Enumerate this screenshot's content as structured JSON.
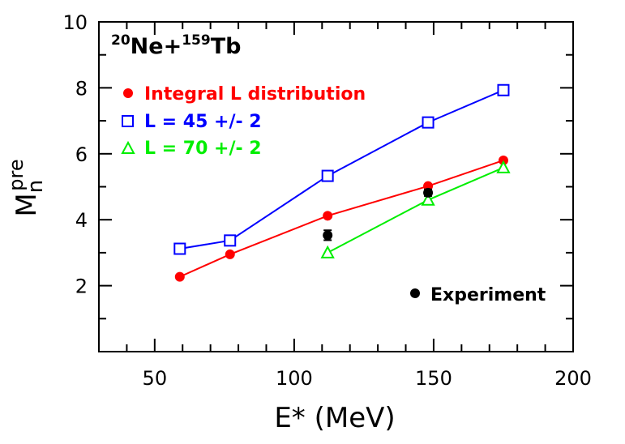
{
  "chart_data": {
    "type": "line",
    "system_label": {
      "z1": "20",
      "p1": "Ne+",
      "z2": "159",
      "p2": "Tb"
    },
    "xlabel": "E* (MeV)",
    "ylabel": {
      "main": "M",
      "sub": "n",
      "sup": "pre"
    },
    "xlim": [
      30,
      200
    ],
    "ylim": [
      0,
      10
    ],
    "x_ticks": [
      50,
      100,
      150,
      200
    ],
    "y_ticks": [
      2,
      4,
      6,
      8,
      10
    ],
    "grid": false,
    "legend_position": "top-left",
    "series": [
      {
        "name": "Integral L distribution",
        "color": "#ff0000",
        "marker": "filled-circle",
        "x": [
          59,
          77,
          112,
          148,
          175
        ],
        "y": [
          2.27,
          2.95,
          4.12,
          5.02,
          5.8
        ]
      },
      {
        "name": "L = 45 +/- 2",
        "color": "#0000ff",
        "marker": "open-square",
        "x": [
          59,
          77,
          112,
          148,
          175
        ],
        "y": [
          3.12,
          3.37,
          5.33,
          6.95,
          7.93
        ]
      },
      {
        "name": "L = 70 +/- 2",
        "color": "#00ee00",
        "marker": "open-triangle",
        "x": [
          112,
          148,
          175
        ],
        "y": [
          3.0,
          4.6,
          5.58
        ]
      }
    ],
    "experiment": {
      "name": "Experiment",
      "color": "#000000",
      "marker": "filled-circle",
      "x": [
        112,
        148
      ],
      "y": [
        3.53,
        4.82
      ],
      "err": [
        0.15,
        0.1
      ]
    }
  }
}
